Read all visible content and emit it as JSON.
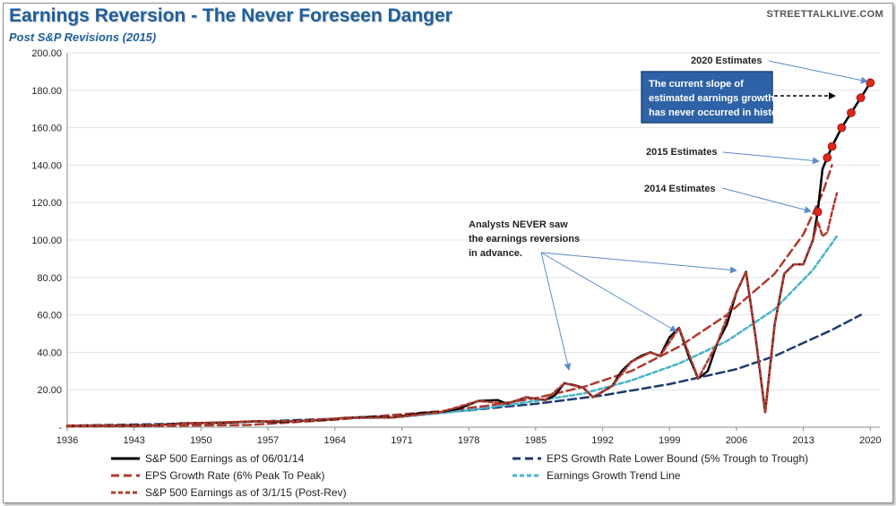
{
  "header": {
    "title": "Earnings Reversion - The Never Foreseen Danger",
    "subtitle": "Post S&P Revisions (2015)",
    "brand": "STREETTALKLIVE.COM"
  },
  "colors": {
    "black": "#000000",
    "red": "#b03a2e",
    "navy": "#1f3b6e",
    "cyan": "#49b3cc",
    "marker": "#e0261b",
    "arrow": "#5b8cc9",
    "box": "#2e62a6"
  },
  "chart_data": {
    "type": "line",
    "xlim": [
      1936,
      2021
    ],
    "ylim": [
      0,
      200
    ],
    "x_ticks": [
      "1936",
      "1943",
      "1950",
      "1957",
      "1964",
      "1971",
      "1978",
      "1985",
      "1992",
      "1999",
      "2006",
      "2013",
      "2020"
    ],
    "y_ticks": [
      "-",
      "20.00",
      "40.00",
      "60.00",
      "80.00",
      "100.00",
      "120.00",
      "140.00",
      "160.00",
      "180.00",
      "200.00"
    ],
    "series": [
      {
        "name": "S&P 500 Earnings as of 06/01/14",
        "style": "solid-black",
        "points": [
          [
            1936,
            0.8
          ],
          [
            1940,
            0.9
          ],
          [
            1945,
            1.0
          ],
          [
            1948,
            2.0
          ],
          [
            1950,
            2.3
          ],
          [
            1953,
            2.5
          ],
          [
            1956,
            3.2
          ],
          [
            1958,
            2.8
          ],
          [
            1960,
            3.2
          ],
          [
            1963,
            4.0
          ],
          [
            1965,
            5.0
          ],
          [
            1968,
            5.5
          ],
          [
            1970,
            5.1
          ],
          [
            1973,
            7.5
          ],
          [
            1975,
            8.0
          ],
          [
            1977,
            10.0
          ],
          [
            1979,
            14.0
          ],
          [
            1981,
            14.5
          ],
          [
            1982,
            12.5
          ],
          [
            1984,
            16.0
          ],
          [
            1986,
            14.5
          ],
          [
            1987,
            17.0
          ],
          [
            1988,
            23.5
          ],
          [
            1989,
            22.5
          ],
          [
            1990,
            21.0
          ],
          [
            1991,
            16.0
          ],
          [
            1992,
            19.0
          ],
          [
            1993,
            22.0
          ],
          [
            1994,
            30.0
          ],
          [
            1995,
            35.0
          ],
          [
            1996,
            38.0
          ],
          [
            1997,
            40.0
          ],
          [
            1998,
            38.0
          ],
          [
            1999,
            48.0
          ],
          [
            2000,
            53.0
          ],
          [
            2001,
            38.0
          ],
          [
            2002,
            26.0
          ],
          [
            2003,
            30.0
          ],
          [
            2004,
            45.0
          ],
          [
            2005,
            55.0
          ],
          [
            2006,
            72.0
          ],
          [
            2007,
            83.0
          ],
          [
            2008,
            48.0
          ],
          [
            2009,
            8.0
          ],
          [
            2010,
            55.0
          ],
          [
            2011,
            82.0
          ],
          [
            2012,
            87.0
          ],
          [
            2013,
            87.0
          ],
          [
            2014,
            100.0
          ],
          [
            2014.5,
            115.0
          ],
          [
            2015,
            138.0
          ],
          [
            2015.5,
            144.0
          ],
          [
            2016,
            150.0
          ],
          [
            2017,
            160.0
          ],
          [
            2018,
            168.0
          ],
          [
            2019,
            176.0
          ],
          [
            2020,
            184.0
          ]
        ]
      },
      {
        "name": "EPS Growth Rate (6% Peak To Peak)",
        "style": "dashed-red",
        "points": [
          [
            1936,
            0.4
          ],
          [
            1945,
            0.7
          ],
          [
            1955,
            1.2
          ],
          [
            1964,
            4.0
          ],
          [
            1970,
            6.5
          ],
          [
            1975,
            8.5
          ],
          [
            1980,
            11.5
          ],
          [
            1985,
            15.5
          ],
          [
            1990,
            21.5
          ],
          [
            1995,
            30.0
          ],
          [
            2000,
            43.0
          ],
          [
            2005,
            60.0
          ],
          [
            2010,
            82.0
          ],
          [
            2013,
            103.0
          ],
          [
            2015,
            125.0
          ],
          [
            2016,
            140.0
          ]
        ]
      },
      {
        "name": "S&P 500 Earnings as of 3/1/15 (Post-Rev)",
        "style": "dotted-red",
        "points": [
          [
            1936,
            0.8
          ],
          [
            1945,
            1.0
          ],
          [
            1950,
            2.3
          ],
          [
            1956,
            3.2
          ],
          [
            1960,
            3.2
          ],
          [
            1965,
            5.0
          ],
          [
            1970,
            5.1
          ],
          [
            1975,
            8.0
          ],
          [
            1979,
            14.0
          ],
          [
            1982,
            12.5
          ],
          [
            1984,
            16.0
          ],
          [
            1986,
            14.5
          ],
          [
            1988,
            23.5
          ],
          [
            1990,
            21.0
          ],
          [
            1991,
            16.0
          ],
          [
            1993,
            22.0
          ],
          [
            1995,
            35.0
          ],
          [
            1997,
            40.0
          ],
          [
            1998,
            38.0
          ],
          [
            2000,
            53.0
          ],
          [
            2002,
            26.0
          ],
          [
            2004,
            45.0
          ],
          [
            2006,
            72.0
          ],
          [
            2007,
            83.0
          ],
          [
            2008,
            48.0
          ],
          [
            2009,
            8.0
          ],
          [
            2010,
            55.0
          ],
          [
            2011,
            82.0
          ],
          [
            2012,
            87.0
          ],
          [
            2013,
            87.0
          ],
          [
            2014,
            100.0
          ],
          [
            2014.5,
            110.0
          ],
          [
            2015,
            102.0
          ],
          [
            2015.5,
            104.0
          ],
          [
            2016,
            115.0
          ],
          [
            2016.5,
            125.0
          ]
        ]
      },
      {
        "name": "EPS Growth Rate Lower Bound (5% Trough to Trough)",
        "style": "dashed-navy",
        "points": [
          [
            1936,
            0.8
          ],
          [
            1950,
            2.0
          ],
          [
            1964,
            4.5
          ],
          [
            1971,
            6.5
          ],
          [
            1978,
            9.0
          ],
          [
            1985,
            12.5
          ],
          [
            1992,
            17.0
          ],
          [
            1999,
            23.0
          ],
          [
            2006,
            31.0
          ],
          [
            2010,
            38.0
          ],
          [
            2013,
            45.0
          ],
          [
            2016,
            52.0
          ],
          [
            2019,
            60.0
          ]
        ]
      },
      {
        "name": "Earnings Growth Trend Line",
        "style": "dashed-cyan",
        "points": [
          [
            1964,
            4.5
          ],
          [
            1971,
            5.5
          ],
          [
            1978,
            9.0
          ],
          [
            1985,
            14.0
          ],
          [
            1990,
            18.0
          ],
          [
            1995,
            25.0
          ],
          [
            2000,
            34.0
          ],
          [
            2005,
            46.0
          ],
          [
            2010,
            63.0
          ],
          [
            2014,
            84.0
          ],
          [
            2016.5,
            102.0
          ]
        ]
      }
    ],
    "estimate_markers": [
      [
        2014.5,
        115.0
      ],
      [
        2015.5,
        144.0
      ],
      [
        2016,
        150.0
      ],
      [
        2017,
        160.0
      ],
      [
        2018,
        168.0
      ],
      [
        2019,
        176.0
      ],
      [
        2020,
        184.0
      ]
    ],
    "annotations": {
      "estimates_2020": "2020 Estimates",
      "estimates_2015": "2015 Estimates",
      "estimates_2014": "2014 Estimates",
      "analysts_line1": "Analysts NEVER saw",
      "analysts_line2": "the earnings reversions",
      "analysts_line3": "in advance.",
      "box_line1": "The current slope of",
      "box_line2": "estimated earnings growth",
      "box_line3": "has never occurred in history."
    },
    "legend_placement": "bottom"
  }
}
